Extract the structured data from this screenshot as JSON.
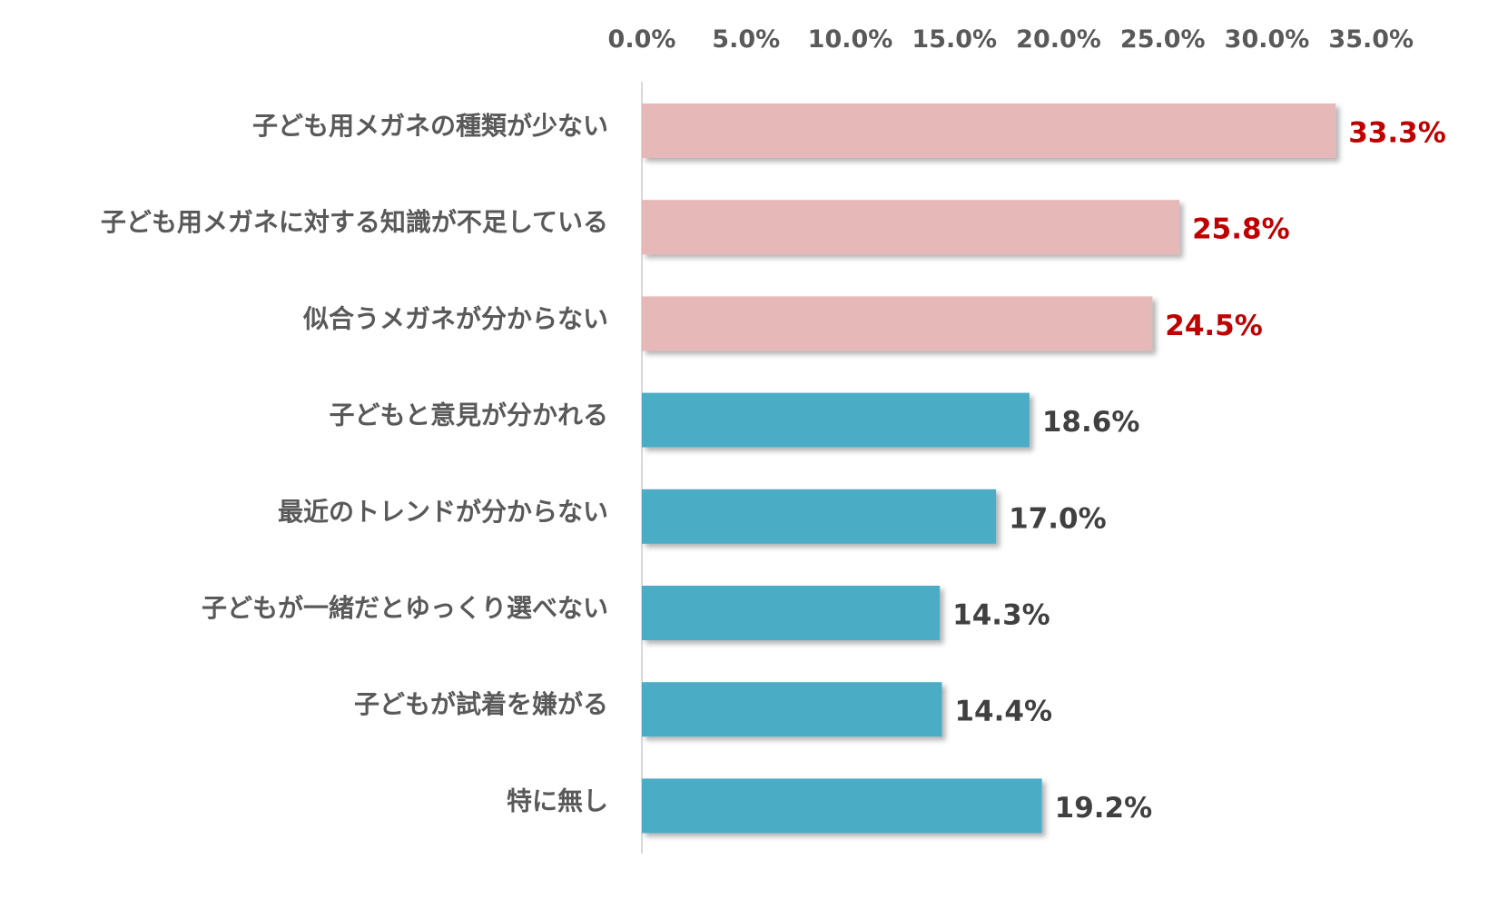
{
  "chart_data": {
    "type": "bar",
    "orientation": "horizontal",
    "categories": [
      "子ども用メガネの種類が少ない",
      "子ども用メガネに対する知識が不足している",
      "似合うメガネが分からない",
      "子どもと意見が分かれる",
      "最近のトレンドが分からない",
      "子どもが一緒だとゆっくり選べない",
      "子どもが試着を嫌がる",
      "特に無し"
    ],
    "values": [
      33.3,
      25.8,
      24.5,
      18.6,
      17.0,
      14.3,
      14.4,
      19.2
    ],
    "value_labels": [
      "33.3%",
      "25.8%",
      "24.5%",
      "18.6%",
      "17.0%",
      "14.3%",
      "14.4%",
      "19.2%"
    ],
    "highlighted": [
      true,
      true,
      true,
      false,
      false,
      false,
      false,
      false
    ],
    "xlim": [
      0,
      35
    ],
    "ticks": [
      0,
      5,
      10,
      15,
      20,
      25,
      30,
      35
    ],
    "tick_labels": [
      "0.0%",
      "5.0%",
      "10.0%",
      "15.0%",
      "20.0%",
      "25.0%",
      "30.0%",
      "35.0%"
    ],
    "axis_position": "top",
    "grid": false,
    "legend": "none",
    "title": "",
    "xlabel": "",
    "ylabel": "",
    "colors": {
      "highlight_bar": "#E6B8B7",
      "normal_bar": "#4BACC6",
      "highlight_label": "#C00000",
      "normal_label": "#404040",
      "axis_line": "#D9D9D9",
      "text": "#595959"
    }
  }
}
